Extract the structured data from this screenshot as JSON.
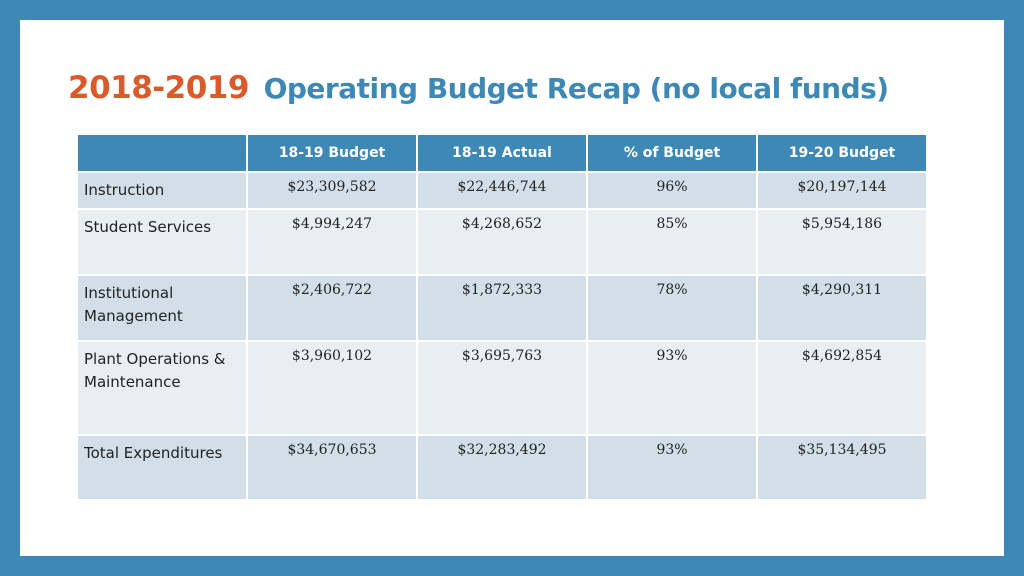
{
  "slide": {
    "title_year": "2018-2019",
    "title_rest": "Operating Budget Recap (no local funds)"
  },
  "table": {
    "headers": [
      "",
      "18-19 Budget",
      "18-19 Actual",
      "% of Budget",
      "19-20 Budget"
    ],
    "rows": [
      {
        "label": "Instruction",
        "budget_1819": "$23,309,582",
        "actual_1819": "$22,446,744",
        "pct_budget": "96%",
        "budget_1920": "$20,197,144"
      },
      {
        "label": "Student Services",
        "budget_1819": "$4,994,247",
        "actual_1819": "$4,268,652",
        "pct_budget": "85%",
        "budget_1920": "$5,954,186"
      },
      {
        "label": "Institutional Management",
        "budget_1819": "$2,406,722",
        "actual_1819": "$1,872,333",
        "pct_budget": "78%",
        "budget_1920": "$4,290,311"
      },
      {
        "label": "Plant Operations & Maintenance",
        "budget_1819": "$3,960,102",
        "actual_1819": "$3,695,763",
        "pct_budget": "93%",
        "budget_1920": "$4,692,854"
      },
      {
        "label": "Total Expenditures",
        "budget_1819": "$34,670,653",
        "actual_1819": "$32,283,492",
        "pct_budget": "93%",
        "budget_1920": "$35,134,495"
      }
    ]
  },
  "colors": {
    "background": "#3e88b5",
    "title_year": "#d95a2b",
    "title_rest": "#3e88b5",
    "header_fill": "#3e88b5"
  }
}
